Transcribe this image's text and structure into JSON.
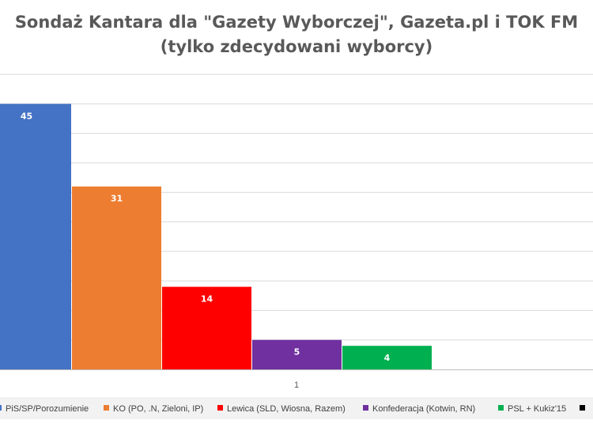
{
  "chart_data": {
    "type": "bar",
    "title_line1": "Sondaż Kantara dla \"Gazety Wyborczej\", Gazeta.pl i TOK FM",
    "title_line2": "(tylko zdecydowani wyborcy)",
    "categories": [
      "1"
    ],
    "series": [
      {
        "name": "PiS/SP/Porozumienie",
        "values": [
          45
        ],
        "color": "#4472c4"
      },
      {
        "name": "KO (PO, .N, Zieloni, IP)",
        "values": [
          31
        ],
        "color": "#ed7d31"
      },
      {
        "name": "Lewica (SLD, Wiosna, Razem)",
        "values": [
          14
        ],
        "color": "#ff0000"
      },
      {
        "name": "Konfederacja (Kotwin, RN)",
        "values": [
          5
        ],
        "color": "#7030a0"
      },
      {
        "name": "PSL + Kukiz'15",
        "values": [
          4
        ],
        "color": "#00b050"
      },
      {
        "name": "",
        "values": [
          null
        ],
        "color": "#000000"
      }
    ],
    "ylim": [
      0,
      50
    ],
    "y_gridline_step": 5,
    "grid": true,
    "y_tick_labels_visible": false,
    "legend_position": "bottom",
    "data_labels": [
      "45",
      "31",
      "14",
      "5",
      "4"
    ],
    "x_tick_label": "1"
  }
}
